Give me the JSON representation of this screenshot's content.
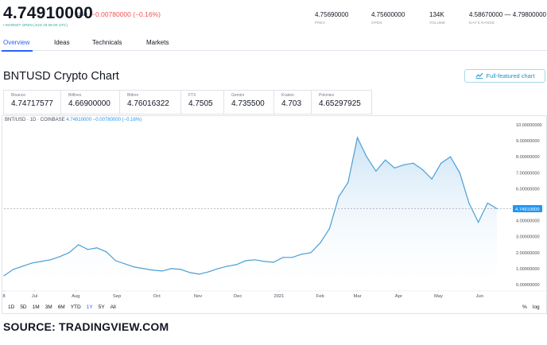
{
  "header": {
    "price": "4.74910000",
    "currency": "USD",
    "change": "−0.00780000 (−0.16%)",
    "market_status": "• MARKET OPEN (JUN 19 06:00 UTC)",
    "stats": [
      {
        "value": "4.75690000",
        "label": "PREV"
      },
      {
        "value": "4.75600000",
        "label": "OPEN"
      },
      {
        "value": "134K",
        "label": "VOLUME"
      },
      {
        "value": "4.58670000 — 4.79800000",
        "label": "DAY'S RANGE"
      }
    ]
  },
  "tabs": [
    "Overview",
    "Ideas",
    "Technicals",
    "Markets"
  ],
  "page_title": "BNTUSD Crypto Chart",
  "full_chart_button": "Full-featured chart",
  "exchanges": [
    {
      "name": "Binance",
      "value": "4.74717577"
    },
    {
      "name": "Bitfinex",
      "value": "4.66900000"
    },
    {
      "name": "Bittrex",
      "value": "4.76016322"
    },
    {
      "name": "FTX",
      "value": "4.7505"
    },
    {
      "name": "Gemini",
      "value": "4.735500"
    },
    {
      "name": "Kraken",
      "value": "4.703"
    },
    {
      "name": "Poloniex",
      "value": "4.65297925"
    }
  ],
  "legend": {
    "symbol": "BNT/USD · 1D · COINBASE",
    "value": "4.74910000",
    "change": "−0.00780000 (−0.16%)"
  },
  "ranges": [
    "1D",
    "5D",
    "1M",
    "3M",
    "6M",
    "YTD",
    "1Y",
    "5Y",
    "All"
  ],
  "selected_range": "1Y",
  "percent_toggle": "%",
  "log_toggle": "log",
  "source": "SOURCE: TRADINGVIEW.COM",
  "colors": {
    "line": "#4a9fd5",
    "fill_top": "#c9e2f5",
    "down": "#ef5350",
    "accent": "#2962ff",
    "last_price_tag": "#2196f3"
  },
  "icons": {
    "full_chart": "chart-icon"
  },
  "chart_data": {
    "type": "area",
    "title": "",
    "xlabel": "",
    "ylabel": "",
    "x_ticks": [
      "8",
      "Jul",
      "Aug",
      "Sep",
      "Oct",
      "Nov",
      "Dec",
      "2021",
      "Feb",
      "Mar",
      "Apr",
      "May",
      "Jun"
    ],
    "y_ticks": [
      "0.00000000",
      "1.00000000",
      "2.00000000",
      "3.00000000",
      "4.00000000",
      "5.00000000",
      "6.00000000",
      "7.00000000",
      "8.00000000",
      "9.00000000",
      "10.00000000"
    ],
    "ylim": [
      0,
      10
    ],
    "last_value": "4.74910000",
    "grid": false,
    "series": [
      {
        "x": [
          "2020-06-08",
          "2020-06-15",
          "2020-06-22",
          "2020-06-29",
          "2020-07-06",
          "2020-07-13",
          "2020-07-20",
          "2020-07-27",
          "2020-08-03",
          "2020-08-10",
          "2020-08-17",
          "2020-08-24",
          "2020-08-31",
          "2020-09-07",
          "2020-09-14",
          "2020-09-21",
          "2020-09-28",
          "2020-10-05",
          "2020-10-12",
          "2020-10-19",
          "2020-10-26",
          "2020-11-02",
          "2020-11-09",
          "2020-11-16",
          "2020-11-23",
          "2020-11-30",
          "2020-12-07",
          "2020-12-14",
          "2020-12-21",
          "2020-12-28",
          "2021-01-04",
          "2021-01-11",
          "2021-01-18",
          "2021-01-25",
          "2021-02-01",
          "2021-02-08",
          "2021-02-15",
          "2021-02-22",
          "2021-03-01",
          "2021-03-08",
          "2021-03-15",
          "2021-03-22",
          "2021-03-29",
          "2021-04-05",
          "2021-04-12",
          "2021-04-19",
          "2021-04-26",
          "2021-05-03",
          "2021-05-10",
          "2021-05-17",
          "2021-05-24",
          "2021-05-31",
          "2021-06-07",
          "2021-06-14"
        ],
        "y": [
          0.55,
          0.95,
          1.15,
          1.35,
          1.45,
          1.55,
          1.75,
          2.0,
          2.5,
          2.2,
          2.3,
          2.05,
          1.5,
          1.3,
          1.1,
          1.0,
          0.9,
          0.85,
          1.0,
          0.95,
          0.75,
          0.65,
          0.8,
          1.0,
          1.15,
          1.25,
          1.5,
          1.55,
          1.45,
          1.4,
          1.7,
          1.7,
          1.9,
          2.0,
          2.6,
          3.5,
          5.5,
          6.4,
          9.2,
          8.0,
          7.1,
          7.8,
          7.3,
          7.5,
          7.6,
          7.2,
          6.6,
          7.6,
          8.0,
          7.0,
          5.1,
          3.9,
          5.1,
          4.75
        ]
      }
    ]
  }
}
